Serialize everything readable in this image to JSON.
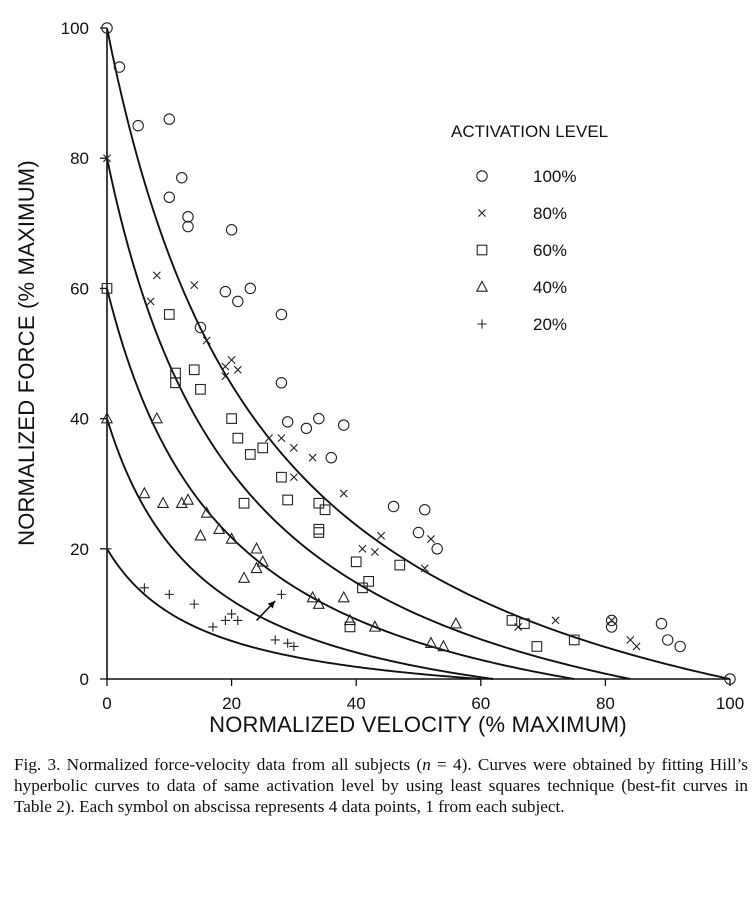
{
  "chart_data": {
    "type": "scatter",
    "xlabel": "NORMALIZED VELOCITY (% MAXIMUM)",
    "ylabel": "NORMALIZED FORCE (% MAXIMUM)",
    "xlim": [
      0,
      100
    ],
    "ylim": [
      0,
      100
    ],
    "x_ticks": [
      0,
      20,
      40,
      60,
      80,
      100
    ],
    "y_ticks": [
      0,
      20,
      40,
      60,
      80,
      100
    ],
    "grid": false,
    "legend_title": "ACTIVATION LEVEL",
    "legend_position": "top-right",
    "arrow_annotation": {
      "from": [
        24,
        9
      ],
      "to": [
        27,
        12
      ]
    },
    "series": [
      {
        "name": "100%",
        "marker": "circle",
        "fit_curve": {
          "f0": 100,
          "vmax": 100,
          "k": 0.26
        },
        "points": [
          [
            0,
            100
          ],
          [
            2,
            94
          ],
          [
            5,
            85
          ],
          [
            10,
            86
          ],
          [
            12,
            77
          ],
          [
            10,
            74
          ],
          [
            13,
            71
          ],
          [
            13,
            69.5
          ],
          [
            20,
            69
          ],
          [
            19,
            59.5
          ],
          [
            23,
            60
          ],
          [
            21,
            58
          ],
          [
            28,
            56
          ],
          [
            15,
            54
          ],
          [
            28,
            45.5
          ],
          [
            29,
            39.5
          ],
          [
            32,
            38.5
          ],
          [
            34,
            40
          ],
          [
            36,
            34
          ],
          [
            38,
            39
          ],
          [
            46,
            26.5
          ],
          [
            50,
            22.5
          ],
          [
            51,
            26
          ],
          [
            53,
            20
          ],
          [
            81,
            8
          ],
          [
            81,
            9
          ],
          [
            89,
            8.5
          ],
          [
            90,
            6
          ],
          [
            92,
            5
          ],
          [
            100,
            0
          ]
        ]
      },
      {
        "name": "80%",
        "marker": "x",
        "fit_curve": {
          "f0": 80,
          "vmax": 84,
          "k": 0.26
        },
        "points": [
          [
            0,
            80
          ],
          [
            7,
            58
          ],
          [
            8,
            62
          ],
          [
            14,
            60.5
          ],
          [
            16,
            52
          ],
          [
            19,
            48
          ],
          [
            20,
            49
          ],
          [
            21,
            47.5
          ],
          [
            19,
            46.5
          ],
          [
            26,
            37
          ],
          [
            28,
            37
          ],
          [
            30,
            35.5
          ],
          [
            30,
            31
          ],
          [
            33,
            34
          ],
          [
            38,
            28.5
          ],
          [
            41,
            20
          ],
          [
            43,
            19.5
          ],
          [
            44,
            22
          ],
          [
            51,
            17
          ],
          [
            52,
            21.5
          ],
          [
            66,
            8
          ],
          [
            72,
            9
          ],
          [
            81,
            9
          ],
          [
            84,
            6
          ],
          [
            85,
            5
          ]
        ]
      },
      {
        "name": "60%",
        "marker": "square",
        "fit_curve": {
          "f0": 60,
          "vmax": 75,
          "k": 0.26
        },
        "points": [
          [
            0,
            60
          ],
          [
            10,
            56
          ],
          [
            11,
            47
          ],
          [
            11,
            45.5
          ],
          [
            14,
            47.5
          ],
          [
            15,
            44.5
          ],
          [
            20,
            40
          ],
          [
            21,
            37
          ],
          [
            23,
            34.5
          ],
          [
            25,
            35.5
          ],
          [
            22,
            27
          ],
          [
            28,
            31
          ],
          [
            29,
            27.5
          ],
          [
            34,
            27
          ],
          [
            34,
            23
          ],
          [
            34,
            22.5
          ],
          [
            35,
            26
          ],
          [
            40,
            18
          ],
          [
            41,
            14
          ],
          [
            42,
            15
          ],
          [
            47,
            17.5
          ],
          [
            39,
            8
          ],
          [
            65,
            9
          ],
          [
            67,
            8.5
          ],
          [
            69,
            5
          ],
          [
            75,
            6
          ]
        ]
      },
      {
        "name": "40%",
        "marker": "triangle",
        "fit_curve": {
          "f0": 40,
          "vmax": 62,
          "k": 0.26
        },
        "points": [
          [
            0,
            40
          ],
          [
            6,
            28.5
          ],
          [
            8,
            40
          ],
          [
            9,
            27
          ],
          [
            12,
            27
          ],
          [
            13,
            27.5
          ],
          [
            15,
            22
          ],
          [
            16,
            25.5
          ],
          [
            18,
            23
          ],
          [
            20,
            21.5
          ],
          [
            22,
            15.5
          ],
          [
            24,
            20
          ],
          [
            24,
            17
          ],
          [
            25,
            18
          ],
          [
            33,
            12.5
          ],
          [
            34,
            11.5
          ],
          [
            38,
            12.5
          ],
          [
            39,
            9
          ],
          [
            43,
            8
          ],
          [
            52,
            5.5
          ],
          [
            54,
            5
          ],
          [
            56,
            8.5
          ]
        ]
      },
      {
        "name": "20%",
        "marker": "plus",
        "fit_curve": {
          "f0": 20,
          "vmax": 60,
          "k": 0.26
        },
        "points": [
          [
            0,
            20
          ],
          [
            6,
            14
          ],
          [
            10,
            13
          ],
          [
            14,
            11.5
          ],
          [
            17,
            8
          ],
          [
            19,
            9
          ],
          [
            20,
            10
          ],
          [
            21,
            9
          ],
          [
            27,
            6
          ],
          [
            28,
            13
          ],
          [
            29,
            5.5
          ],
          [
            30,
            5
          ]
        ]
      }
    ]
  },
  "caption": {
    "before_n": "Fig. 3. Normalized force-velocity data from all subjects (",
    "n_symbol": "n",
    "after_n": " = 4). Curves were obtained by fitting Hill’s hyperbolic curves to data of same activation level by using least squares technique (best-fit curves in Table 2). Each symbol on abscissa represents 4 data points, 1 from each subject."
  }
}
